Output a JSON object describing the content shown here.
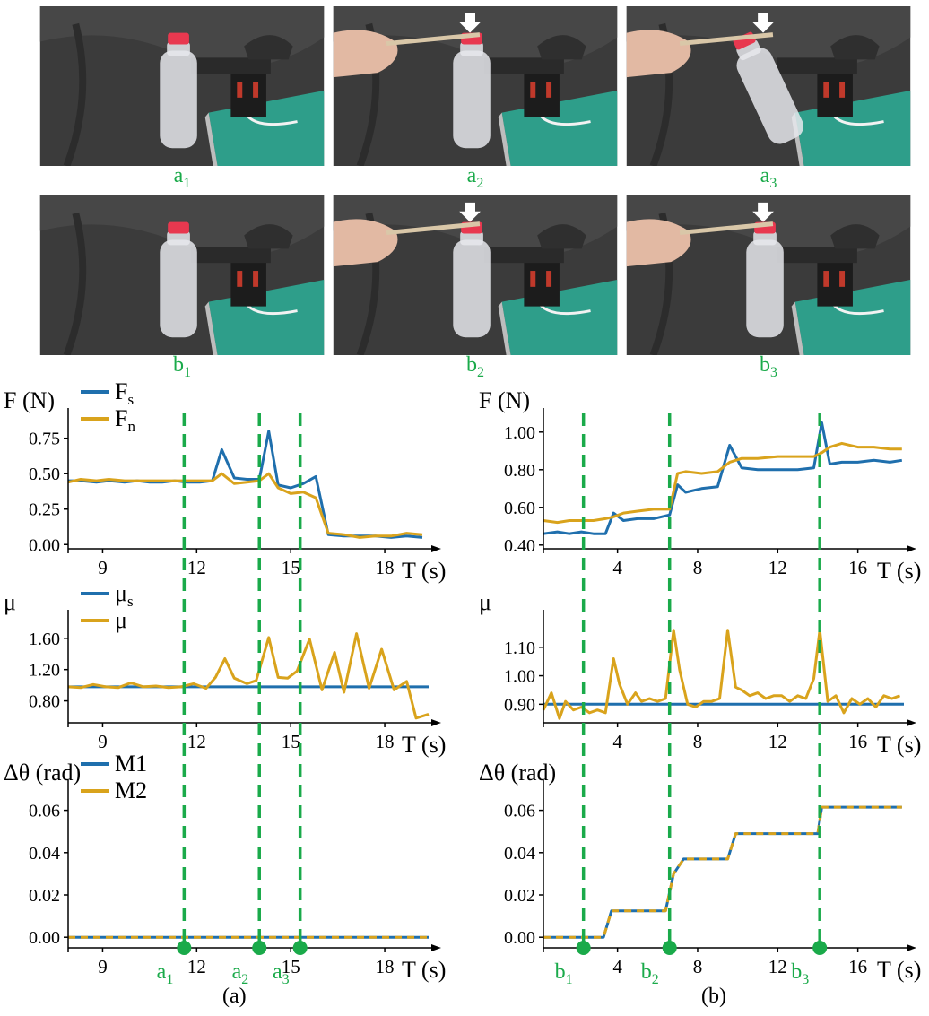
{
  "photos": [
    {
      "label_main": "a",
      "label_sub": "1",
      "state": "holding"
    },
    {
      "label_main": "a",
      "label_sub": "2",
      "state": "pressing"
    },
    {
      "label_main": "a",
      "label_sub": "3",
      "state": "slipping"
    },
    {
      "label_main": "b",
      "label_sub": "1",
      "state": "holding"
    },
    {
      "label_main": "b",
      "label_sub": "2",
      "state": "pressing"
    },
    {
      "label_main": "b",
      "label_sub": "3",
      "state": "pressing"
    }
  ],
  "colors": {
    "blue": "#1f6fad",
    "orange": "#d9a31c",
    "green": "#1aaa4a",
    "axis": "#000000"
  },
  "captions": {
    "a": "(a)",
    "b": "(b)"
  },
  "chart_data": [
    {
      "id": "a-force",
      "type": "line",
      "ylabel": "F (N)",
      "xlabel": "T (s)",
      "xlim": [
        7.9,
        19.4
      ],
      "ylim": [
        -0.03,
        0.9
      ],
      "xticks": [
        9,
        12,
        15,
        18
      ],
      "yticks": [
        0.0,
        0.25,
        0.5,
        0.75
      ],
      "ytick_labels": [
        "0.00",
        "0.25",
        "0.50",
        "0.75"
      ],
      "legend": [
        {
          "main": "F",
          "sub": "s",
          "color": "#1f6fad"
        },
        {
          "main": "F",
          "sub": "n",
          "color": "#d9a31c"
        }
      ],
      "vlines": [
        11.6,
        14.0,
        15.3
      ],
      "series": [
        {
          "color": "#1f6fad",
          "x": [
            7.9,
            8.3,
            8.8,
            9.2,
            9.7,
            10.1,
            10.5,
            10.9,
            11.3,
            11.7,
            12.1,
            12.5,
            12.8,
            13.2,
            13.6,
            14.0,
            14.3,
            14.6,
            15.0,
            15.4,
            15.8,
            16.2,
            16.7,
            17.2,
            17.7,
            18.2,
            18.7,
            19.2
          ],
          "y": [
            0.45,
            0.45,
            0.44,
            0.45,
            0.44,
            0.45,
            0.44,
            0.44,
            0.45,
            0.44,
            0.44,
            0.45,
            0.67,
            0.47,
            0.46,
            0.46,
            0.8,
            0.42,
            0.4,
            0.43,
            0.48,
            0.07,
            0.06,
            0.06,
            0.06,
            0.05,
            0.06,
            0.05
          ]
        },
        {
          "color": "#d9a31c",
          "x": [
            7.9,
            8.3,
            8.8,
            9.2,
            9.7,
            10.1,
            10.5,
            10.9,
            11.3,
            11.7,
            12.1,
            12.5,
            12.8,
            13.2,
            13.6,
            14.0,
            14.3,
            14.6,
            15.0,
            15.4,
            15.8,
            16.2,
            16.7,
            17.2,
            17.7,
            18.2,
            18.7,
            19.2
          ],
          "y": [
            0.44,
            0.46,
            0.45,
            0.46,
            0.45,
            0.45,
            0.45,
            0.45,
            0.45,
            0.45,
            0.45,
            0.45,
            0.5,
            0.43,
            0.44,
            0.45,
            0.5,
            0.4,
            0.36,
            0.37,
            0.33,
            0.08,
            0.07,
            0.05,
            0.06,
            0.06,
            0.08,
            0.07
          ]
        }
      ]
    },
    {
      "id": "b-force",
      "type": "line",
      "ylabel": "F (N)",
      "xlabel": "T (s)",
      "xlim": [
        0.3,
        18.3
      ],
      "ylim": [
        0.38,
        1.08
      ],
      "xticks": [
        4,
        8,
        12,
        16
      ],
      "yticks": [
        0.4,
        0.6,
        0.8,
        1.0
      ],
      "ytick_labels": [
        "0.40",
        "0.60",
        "0.80",
        "1.00"
      ],
      "legend": [],
      "vlines": [
        2.3,
        6.6,
        14.1
      ],
      "series": [
        {
          "color": "#1f6fad",
          "x": [
            0.3,
            1.0,
            1.6,
            2.2,
            2.8,
            3.4,
            3.8,
            4.3,
            5.0,
            5.8,
            6.6,
            7.0,
            7.4,
            8.2,
            9.0,
            9.6,
            10.2,
            11.0,
            12.0,
            13.0,
            13.8,
            14.2,
            14.6,
            15.2,
            16.0,
            16.8,
            17.6,
            18.2
          ],
          "y": [
            0.46,
            0.47,
            0.46,
            0.47,
            0.46,
            0.46,
            0.57,
            0.53,
            0.54,
            0.54,
            0.56,
            0.72,
            0.68,
            0.7,
            0.71,
            0.93,
            0.81,
            0.8,
            0.8,
            0.8,
            0.81,
            1.05,
            0.83,
            0.84,
            0.84,
            0.85,
            0.84,
            0.85
          ]
        },
        {
          "color": "#d9a31c",
          "x": [
            0.3,
            1.0,
            1.6,
            2.2,
            2.8,
            3.4,
            3.8,
            4.3,
            5.0,
            5.8,
            6.6,
            7.0,
            7.4,
            8.2,
            9.0,
            9.6,
            10.2,
            11.0,
            12.0,
            13.0,
            13.8,
            14.2,
            14.6,
            15.2,
            16.0,
            16.8,
            17.6,
            18.2
          ],
          "y": [
            0.53,
            0.52,
            0.53,
            0.53,
            0.53,
            0.54,
            0.55,
            0.57,
            0.58,
            0.59,
            0.59,
            0.78,
            0.79,
            0.78,
            0.79,
            0.84,
            0.86,
            0.86,
            0.87,
            0.87,
            0.87,
            0.89,
            0.92,
            0.94,
            0.92,
            0.92,
            0.91,
            0.91
          ]
        }
      ]
    },
    {
      "id": "a-mu",
      "type": "line",
      "ylabel": "μ",
      "xlabel": "T (s)",
      "xlim": [
        7.9,
        19.4
      ],
      "ylim": [
        0.52,
        1.85
      ],
      "xticks": [
        9,
        12,
        15,
        18
      ],
      "yticks": [
        0.8,
        1.2,
        1.6
      ],
      "ytick_labels": [
        "0.80",
        "1.20",
        "1.60"
      ],
      "legend": [
        {
          "main": "μ",
          "sub": "s",
          "color": "#1f6fad"
        },
        {
          "main": "μ",
          "sub": "",
          "color": "#d9a31c"
        }
      ],
      "vlines": [
        11.6,
        14.0,
        15.3
      ],
      "series": [
        {
          "color": "#1f6fad",
          "x": [
            7.9,
            19.4
          ],
          "y": [
            0.98,
            0.98
          ]
        },
        {
          "color": "#d9a31c",
          "x": [
            7.9,
            8.3,
            8.7,
            9.1,
            9.5,
            9.9,
            10.3,
            10.7,
            11.1,
            11.5,
            11.9,
            12.3,
            12.6,
            12.9,
            13.2,
            13.6,
            13.9,
            14.3,
            14.6,
            14.9,
            15.2,
            15.6,
            16.0,
            16.4,
            16.7,
            17.1,
            17.5,
            17.9,
            18.3,
            18.7,
            19.0,
            19.4
          ],
          "y": [
            0.98,
            0.97,
            1.01,
            0.98,
            0.97,
            1.03,
            0.98,
            0.99,
            0.97,
            0.98,
            1.02,
            0.96,
            1.1,
            1.34,
            1.09,
            1.02,
            1.06,
            1.61,
            1.1,
            1.09,
            1.18,
            1.59,
            0.94,
            1.42,
            0.91,
            1.66,
            0.96,
            1.46,
            0.94,
            1.05,
            0.58,
            0.63
          ]
        }
      ]
    },
    {
      "id": "b-mu",
      "type": "line",
      "ylabel": "μ",
      "xlabel": "T (s)",
      "xlim": [
        0.3,
        18.3
      ],
      "ylim": [
        0.835,
        1.2
      ],
      "xticks": [
        4,
        8,
        12,
        16
      ],
      "yticks": [
        0.9,
        1.0,
        1.1
      ],
      "ytick_labels": [
        "0.90",
        "1.00",
        "1.10"
      ],
      "legend": [],
      "vlines": [
        2.3,
        6.6,
        14.1
      ],
      "series": [
        {
          "color": "#1f6fad",
          "x": [
            0.3,
            18.3
          ],
          "y": [
            0.9,
            0.9
          ]
        },
        {
          "color": "#d9a31c",
          "x": [
            0.3,
            0.7,
            1.1,
            1.4,
            1.8,
            2.2,
            2.6,
            3.0,
            3.4,
            3.8,
            4.1,
            4.5,
            4.9,
            5.2,
            5.6,
            6.0,
            6.4,
            6.8,
            7.1,
            7.5,
            7.9,
            8.3,
            8.7,
            9.1,
            9.5,
            9.9,
            10.2,
            10.6,
            11.0,
            11.4,
            11.8,
            12.2,
            12.6,
            13.0,
            13.4,
            13.8,
            14.1,
            14.5,
            14.9,
            15.3,
            15.7,
            16.1,
            16.5,
            16.9,
            17.3,
            17.7,
            18.1
          ],
          "y": [
            0.88,
            0.94,
            0.85,
            0.91,
            0.88,
            0.89,
            0.87,
            0.88,
            0.87,
            1.06,
            0.97,
            0.9,
            0.94,
            0.91,
            0.92,
            0.91,
            0.92,
            1.16,
            1.02,
            0.9,
            0.89,
            0.91,
            0.91,
            0.92,
            1.16,
            0.96,
            0.95,
            0.93,
            0.94,
            0.92,
            0.93,
            0.93,
            0.91,
            0.93,
            0.92,
            0.99,
            1.16,
            0.91,
            0.93,
            0.87,
            0.92,
            0.9,
            0.92,
            0.89,
            0.93,
            0.92,
            0.93
          ]
        }
      ]
    },
    {
      "id": "a-theta",
      "type": "line",
      "ylabel": "Δθ (rad)",
      "xlabel": "T (s)",
      "xlim": [
        7.9,
        19.4
      ],
      "ylim": [
        -0.005,
        0.07
      ],
      "xticks": [
        9,
        12,
        15,
        18
      ],
      "yticks": [
        0.0,
        0.02,
        0.04,
        0.06
      ],
      "ytick_labels": [
        "0.00",
        "0.02",
        "0.04",
        "0.06"
      ],
      "legend": [
        {
          "main": "M1",
          "sub": "",
          "color": "#1f6fad"
        },
        {
          "main": "M2",
          "sub": "",
          "color": "#d9a31c"
        }
      ],
      "vlines": [
        11.6,
        14.0,
        15.3
      ],
      "markers": [
        {
          "x": 11.6,
          "main": "a",
          "sub": "1"
        },
        {
          "x": 14.0,
          "main": "a",
          "sub": "2"
        },
        {
          "x": 15.3,
          "main": "a",
          "sub": "3"
        }
      ],
      "series": [
        {
          "color": "#1f6fad",
          "x": [
            7.9,
            19.4
          ],
          "y": [
            0.0,
            0.0
          ]
        },
        {
          "color": "#d9a31c",
          "dashed": true,
          "x": [
            7.9,
            19.4
          ],
          "y": [
            0.0,
            0.0
          ]
        }
      ]
    },
    {
      "id": "b-theta",
      "type": "line",
      "ylabel": "Δθ (rad)",
      "xlabel": "T (s)",
      "xlim": [
        0.3,
        18.3
      ],
      "ylim": [
        -0.005,
        0.07
      ],
      "xticks": [
        4,
        8,
        12,
        16
      ],
      "yticks": [
        0.0,
        0.02,
        0.04,
        0.06
      ],
      "ytick_labels": [
        "0.00",
        "0.02",
        "0.04",
        "0.06"
      ],
      "legend": [],
      "vlines": [
        2.3,
        6.6,
        14.1
      ],
      "markers": [
        {
          "x": 2.3,
          "main": "b",
          "sub": "1"
        },
        {
          "x": 6.6,
          "main": "b",
          "sub": "2"
        },
        {
          "x": 14.1,
          "main": "b",
          "sub": "3"
        }
      ],
      "series": [
        {
          "color": "#1f6fad",
          "x": [
            0.3,
            3.3,
            3.7,
            6.4,
            6.8,
            7.3,
            9.5,
            9.9,
            14.0,
            14.2,
            18.2
          ],
          "y": [
            0,
            0,
            0.0125,
            0.0125,
            0.03,
            0.037,
            0.037,
            0.049,
            0.049,
            0.0615,
            0.0615
          ]
        },
        {
          "color": "#d9a31c",
          "dashed": true,
          "x": [
            0.3,
            3.3,
            3.7,
            6.4,
            6.8,
            7.3,
            9.5,
            9.9,
            14.0,
            14.2,
            18.2
          ],
          "y": [
            0,
            0,
            0.0125,
            0.0125,
            0.03,
            0.037,
            0.037,
            0.049,
            0.049,
            0.0615,
            0.0615
          ]
        }
      ]
    }
  ]
}
